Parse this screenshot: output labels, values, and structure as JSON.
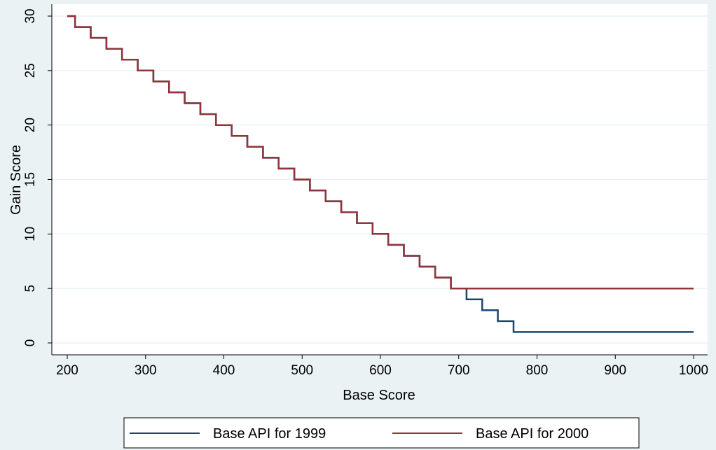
{
  "chart_data": {
    "type": "line",
    "step": true,
    "xlabel": "Base Score",
    "ylabel": "Gain Score",
    "xlim": [
      200,
      1000
    ],
    "ylim": [
      0,
      30
    ],
    "xticks": [
      200,
      300,
      400,
      500,
      600,
      700,
      800,
      900,
      1000
    ],
    "yticks": [
      0,
      5,
      10,
      15,
      20,
      25,
      30
    ],
    "grid": "horizontal",
    "legend_position": "bottom",
    "series": [
      {
        "name": "Base API for 1999",
        "color": "#1a476f",
        "points": [
          [
            200,
            30
          ],
          [
            210,
            29
          ],
          [
            230,
            28
          ],
          [
            250,
            27
          ],
          [
            270,
            26
          ],
          [
            290,
            25
          ],
          [
            310,
            24
          ],
          [
            330,
            23
          ],
          [
            350,
            22
          ],
          [
            370,
            21
          ],
          [
            390,
            20
          ],
          [
            410,
            19
          ],
          [
            430,
            18
          ],
          [
            450,
            17
          ],
          [
            470,
            16
          ],
          [
            490,
            15
          ],
          [
            510,
            14
          ],
          [
            530,
            13
          ],
          [
            550,
            12
          ],
          [
            570,
            11
          ],
          [
            590,
            10
          ],
          [
            610,
            9
          ],
          [
            630,
            8
          ],
          [
            650,
            7
          ],
          [
            670,
            6
          ],
          [
            690,
            5
          ],
          [
            710,
            4
          ],
          [
            730,
            3
          ],
          [
            750,
            2
          ],
          [
            770,
            1
          ],
          [
            1000,
            1
          ]
        ]
      },
      {
        "name": "Base API for 2000",
        "color": "#90353b",
        "points": [
          [
            200,
            30
          ],
          [
            210,
            29
          ],
          [
            230,
            28
          ],
          [
            250,
            27
          ],
          [
            270,
            26
          ],
          [
            290,
            25
          ],
          [
            310,
            24
          ],
          [
            330,
            23
          ],
          [
            350,
            22
          ],
          [
            370,
            21
          ],
          [
            390,
            20
          ],
          [
            410,
            19
          ],
          [
            430,
            18
          ],
          [
            450,
            17
          ],
          [
            470,
            16
          ],
          [
            490,
            15
          ],
          [
            510,
            14
          ],
          [
            530,
            13
          ],
          [
            550,
            12
          ],
          [
            570,
            11
          ],
          [
            590,
            10
          ],
          [
            610,
            9
          ],
          [
            630,
            8
          ],
          [
            650,
            7
          ],
          [
            670,
            6
          ],
          [
            690,
            5
          ],
          [
            1000,
            5
          ]
        ]
      }
    ]
  }
}
